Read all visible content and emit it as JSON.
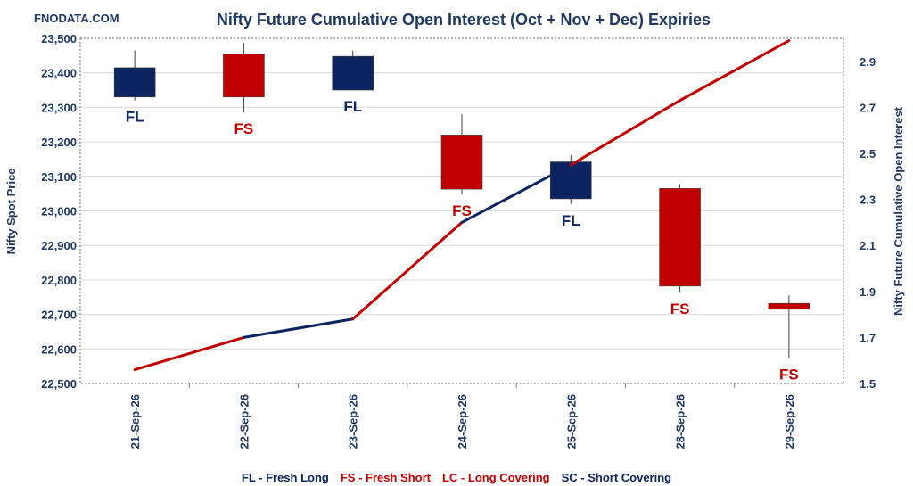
{
  "watermark": "FNODATA.COM",
  "colors": {
    "navy": "#0c2461",
    "red": "#c00000",
    "text": "#1f3864",
    "grid": "#d9d9d9"
  },
  "chart_data": {
    "type": "candlestick+line",
    "title": "Nifty Future Cumulative Open Interest (Oct + Nov + Dec) Expiries",
    "ylabel": "Nifty Spot Price",
    "y2label": "Nifty Future Cumulative Open Interest",
    "categories": [
      "21-Sep-26",
      "22-Sep-26",
      "23-Sep-26",
      "24-Sep-26",
      "25-Sep-26",
      "28-Sep-26",
      "29-Sep-26"
    ],
    "ylim": [
      22500,
      23500
    ],
    "yticks": [
      "22,500",
      "22,600",
      "22,700",
      "22,800",
      "22,900",
      "23,000",
      "23,100",
      "23,200",
      "23,300",
      "23,400",
      "23,500"
    ],
    "y2lim": [
      1.5,
      3.0
    ],
    "y2ticks": [
      "1.5",
      "1.7",
      "1.9",
      "2.1",
      "2.3",
      "2.5",
      "2.7",
      "2.9"
    ],
    "grid": true,
    "candles": [
      {
        "date": "21-Sep-26",
        "open": 23330,
        "high": 23465,
        "low": 23320,
        "close": 23415,
        "tag": "FL"
      },
      {
        "date": "22-Sep-26",
        "open": 23455,
        "high": 23487,
        "low": 23285,
        "close": 23330,
        "tag": "FS"
      },
      {
        "date": "23-Sep-26",
        "open": 23350,
        "high": 23465,
        "low": 23350,
        "close": 23448,
        "tag": "FL"
      },
      {
        "date": "24-Sep-26",
        "open": 23220,
        "high": 23280,
        "low": 23048,
        "close": 23063,
        "tag": "FS"
      },
      {
        "date": "25-Sep-26",
        "open": 23035,
        "high": 23162,
        "low": 23020,
        "close": 23142,
        "tag": "FL"
      },
      {
        "date": "28-Sep-26",
        "open": 23065,
        "high": 23077,
        "low": 22763,
        "close": 22782,
        "tag": "FS"
      },
      {
        "date": "29-Sep-26",
        "open": 22732,
        "high": 22755,
        "low": 22573,
        "close": 22715,
        "tag": "FS"
      }
    ],
    "open_interest": [
      1.56,
      1.7,
      1.78,
      2.2,
      2.45,
      2.73,
      2.99
    ],
    "oi_segment_colors": [
      "red",
      "navy",
      "red",
      "navy",
      "red",
      "red"
    ],
    "legend": [
      {
        "label": "FL - Fresh Long",
        "color": "navy"
      },
      {
        "label": "FS - Fresh Short",
        "color": "red"
      },
      {
        "label": "LC - Long Covering",
        "color": "red"
      },
      {
        "label": "SC - Short Covering",
        "color": "navy"
      }
    ]
  }
}
